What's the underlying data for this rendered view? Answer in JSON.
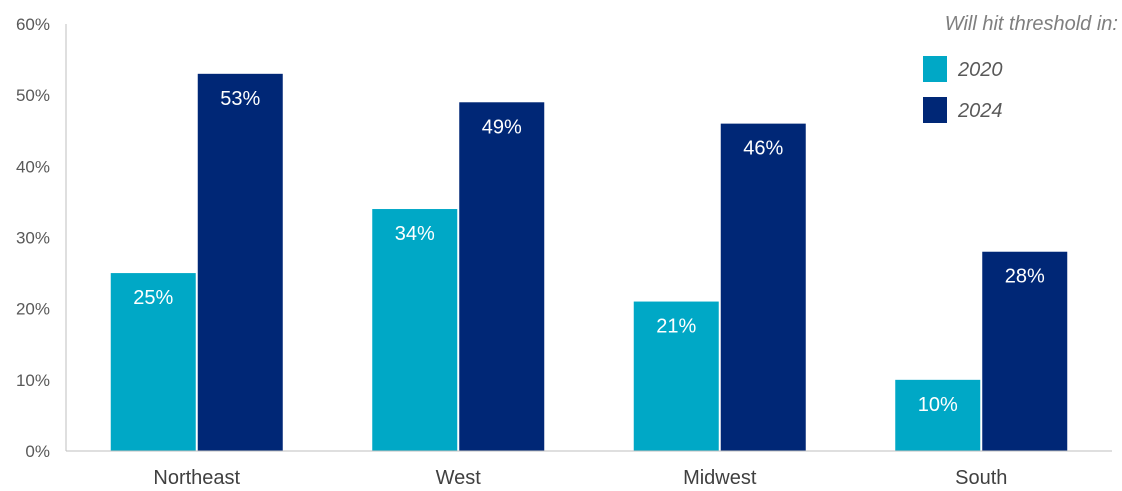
{
  "chart_data": {
    "type": "bar",
    "categories": [
      "Northeast",
      "West",
      "Midwest",
      "South"
    ],
    "series": [
      {
        "name": "2020",
        "values": [
          25,
          34,
          21,
          10
        ],
        "labels": [
          "25%",
          "34%",
          "21%",
          "10%"
        ],
        "color": "#00A8C6"
      },
      {
        "name": "2024",
        "values": [
          53,
          49,
          46,
          28
        ],
        "labels": [
          "53%",
          "49%",
          "46%",
          "28%"
        ],
        "color": "#002776"
      }
    ],
    "ylim": [
      0,
      60
    ],
    "yticks": [
      0,
      10,
      20,
      30,
      40,
      50,
      60
    ],
    "ytick_labels": [
      "0%",
      "10%",
      "20%",
      "30%",
      "40%",
      "50%",
      "60%"
    ],
    "legend_title": "Will hit threshold in:",
    "legend_position": "top-right",
    "grid": false
  }
}
